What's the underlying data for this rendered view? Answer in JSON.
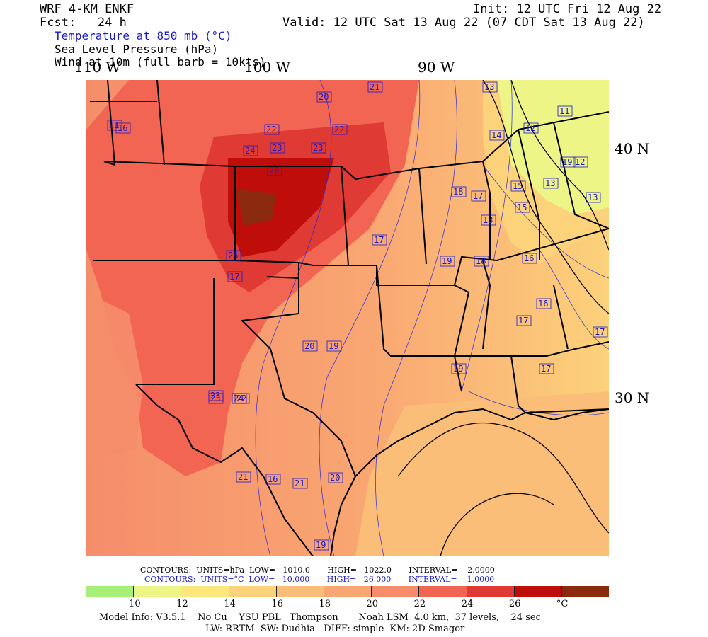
{
  "header": {
    "model": "WRF 4-KM ENKF",
    "fcst": "Fcst:   24 h",
    "init": "Init: 12 UTC Fri 12 Aug 22",
    "valid": "Valid: 12 UTC Sat 13 Aug 22 (07 CDT Sat 13 Aug 22)",
    "field1": "Temperature at 850 mb (°C)",
    "field2": "Sea Level Pressure (hPa)",
    "field3": "Wind at 10m (full barb = 10kts)"
  },
  "axes": {
    "lon_110": "110 W",
    "lon_100": "100 W",
    "lon_90": "90 W",
    "lat_40": "40 N",
    "lat_30": "30 N"
  },
  "contours": {
    "slp": "CONTOURS:  UNITS=hPa  LOW=   1010.0       HIGH=   1022.0       INTERVAL=    2.0000",
    "temp": "CONTOURS:  UNITS=°C  LOW=   10.000       HIGH=   26.000       INTERVAL=    1.0000"
  },
  "colorbar": {
    "colors": [
      "#a6f07a",
      "#eef587",
      "#fbe77c",
      "#fcd27a",
      "#fbbe78",
      "#f9a772",
      "#f58d6b",
      "#f26553",
      "#df3a34",
      "#bf0e0a",
      "#8b2a0e"
    ],
    "labels": [
      "10",
      "12",
      "14",
      "16",
      "18",
      "20",
      "22",
      "24",
      "26",
      "°C"
    ]
  },
  "footer": {
    "line1": "Model Info: V3.5.1    No Cu    YSU PBL   Thompson       Noah LSM  4.0 km,  37 levels,    24 sec",
    "line2": "LW: RRTM  SW: Dudhia   DIFF: simple  KM: 2D Smagor"
  },
  "map_labels": [
    "21",
    "20",
    "21",
    "13",
    "22",
    "22",
    "11",
    "12",
    "24",
    "23",
    "23",
    "14",
    "12",
    "26",
    "13",
    "13",
    "18",
    "17",
    "15",
    "15",
    "13",
    "17",
    "26",
    "17",
    "16",
    "19",
    "18",
    "23",
    "24",
    "16",
    "17",
    "17",
    "20",
    "19",
    "17",
    "19",
    "23",
    "22",
    "21",
    "16",
    "21",
    "20",
    "19",
    "16",
    "19"
  ]
}
